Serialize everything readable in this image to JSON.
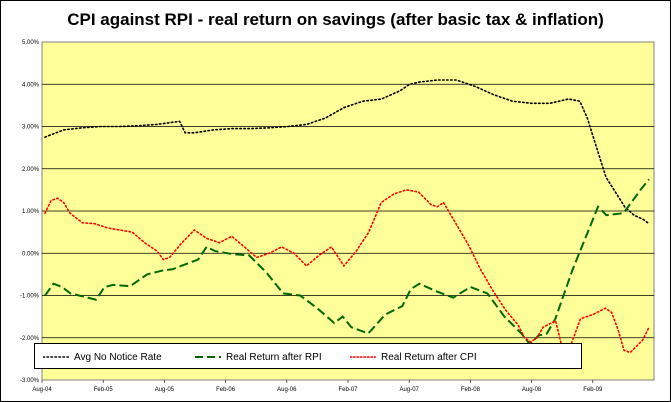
{
  "chart_data": {
    "type": "line",
    "title": "CPI against RPI - real return on savings (after basic tax & inflation)",
    "xlabel": "",
    "ylabel": "",
    "x_ticks": [
      "Aug-04",
      "Feb-05",
      "Aug-05",
      "Feb-06",
      "Aug-06",
      "Feb-07",
      "Aug-07",
      "Feb-08",
      "Aug-08",
      "Feb-09"
    ],
    "y_ticks": [
      "5.00%",
      "4.00%",
      "3.00%",
      "2.00%",
      "1.00%",
      "0.00%",
      "-1.00%",
      "-2.00%",
      "-3.00%"
    ],
    "ylim": [
      -3,
      5
    ],
    "grid": true,
    "legend_position": "bottom",
    "colors": {
      "plot_background": "#FFFF99",
      "gridline": "#000000"
    },
    "series": [
      {
        "name": "Avg No Notice Rate",
        "color": "#000000",
        "style": "dotted",
        "points": [
          [
            0,
            2.75
          ],
          [
            1,
            2.92
          ],
          [
            2,
            2.97
          ],
          [
            3,
            3.0
          ],
          [
            4,
            3.0
          ],
          [
            5,
            3.02
          ],
          [
            6,
            3.05
          ],
          [
            6.8,
            3.1
          ],
          [
            7.2,
            3.12
          ],
          [
            7.5,
            2.85
          ],
          [
            8,
            2.85
          ],
          [
            9,
            2.92
          ],
          [
            10,
            2.95
          ],
          [
            11,
            2.95
          ],
          [
            12,
            2.97
          ],
          [
            13,
            3.0
          ],
          [
            14,
            3.05
          ],
          [
            15,
            3.2
          ],
          [
            16,
            3.45
          ],
          [
            17,
            3.6
          ],
          [
            18,
            3.65
          ],
          [
            19,
            3.85
          ],
          [
            19.5,
            4.0
          ],
          [
            20,
            4.05
          ],
          [
            21,
            4.1
          ],
          [
            22,
            4.1
          ],
          [
            23,
            3.95
          ],
          [
            24,
            3.75
          ],
          [
            25,
            3.6
          ],
          [
            26,
            3.55
          ],
          [
            27,
            3.55
          ],
          [
            27.5,
            3.6
          ],
          [
            28,
            3.65
          ],
          [
            28.6,
            3.6
          ],
          [
            29,
            3.2
          ],
          [
            29.5,
            2.5
          ],
          [
            30,
            1.8
          ],
          [
            31,
            1.1
          ],
          [
            31.5,
            0.9
          ],
          [
            32,
            0.8
          ],
          [
            32.3,
            0.7
          ]
        ]
      },
      {
        "name": "Real Return after RPI",
        "color": "#006600",
        "style": "dashed",
        "points": [
          [
            0,
            -1.0
          ],
          [
            0.5,
            -0.72
          ],
          [
            1,
            -0.8
          ],
          [
            1.5,
            -0.95
          ],
          [
            2,
            -1.0
          ],
          [
            3,
            -1.1
          ],
          [
            3.5,
            -0.8
          ],
          [
            4,
            -0.75
          ],
          [
            5,
            -0.78
          ],
          [
            6,
            -0.5
          ],
          [
            7,
            -0.4
          ],
          [
            7.5,
            -0.38
          ],
          [
            8,
            -0.3
          ],
          [
            9,
            -0.15
          ],
          [
            9.5,
            0.15
          ],
          [
            10,
            0.05
          ],
          [
            11,
            -0.02
          ],
          [
            12,
            -0.05
          ],
          [
            13,
            -0.45
          ],
          [
            14,
            -0.95
          ],
          [
            15,
            -1.0
          ],
          [
            16,
            -1.3
          ],
          [
            17,
            -1.65
          ],
          [
            17.5,
            -1.5
          ],
          [
            18,
            -1.75
          ],
          [
            19,
            -1.9
          ],
          [
            20,
            -1.45
          ],
          [
            21,
            -1.25
          ],
          [
            21.5,
            -0.85
          ],
          [
            22,
            -0.72
          ],
          [
            23,
            -0.9
          ],
          [
            24,
            -1.05
          ],
          [
            25,
            -0.8
          ],
          [
            26,
            -0.95
          ],
          [
            27,
            -1.5
          ],
          [
            28,
            -1.9
          ],
          [
            28.5,
            -2.15
          ],
          [
            29,
            -1.95
          ],
          [
            29.5,
            -1.9
          ],
          [
            30,
            -1.55
          ],
          [
            31,
            -0.4
          ],
          [
            32,
            0.6
          ],
          [
            32.5,
            1.1
          ],
          [
            33,
            0.9
          ],
          [
            34,
            0.95
          ],
          [
            35,
            1.5
          ],
          [
            35.5,
            1.75
          ]
        ]
      },
      {
        "name": "Real Return after CPI",
        "color": "#FF0000",
        "style": "dotted",
        "points": [
          [
            0,
            0.95
          ],
          [
            0.5,
            1.25
          ],
          [
            1,
            1.3
          ],
          [
            1.5,
            1.2
          ],
          [
            2,
            0.95
          ],
          [
            3,
            0.72
          ],
          [
            4,
            0.7
          ],
          [
            5,
            0.6
          ],
          [
            6,
            0.55
          ],
          [
            7,
            0.5
          ],
          [
            8,
            0.25
          ],
          [
            9,
            0.05
          ],
          [
            9.5,
            -0.15
          ],
          [
            10,
            -0.1
          ],
          [
            11,
            0.25
          ],
          [
            12,
            0.55
          ],
          [
            13,
            0.35
          ],
          [
            14,
            0.25
          ],
          [
            15,
            0.4
          ],
          [
            16,
            0.15
          ],
          [
            17,
            -0.1
          ],
          [
            18,
            0.0
          ],
          [
            19,
            0.15
          ],
          [
            20,
            0.0
          ],
          [
            21,
            -0.3
          ],
          [
            22,
            -0.05
          ],
          [
            23,
            0.15
          ],
          [
            24,
            -0.3
          ],
          [
            25,
            0.05
          ],
          [
            26,
            0.5
          ],
          [
            27,
            1.2
          ],
          [
            28,
            1.4
          ],
          [
            29,
            1.5
          ],
          [
            30,
            1.45
          ],
          [
            31,
            1.15
          ],
          [
            31.5,
            1.1
          ],
          [
            32,
            1.2
          ],
          [
            33,
            0.7
          ],
          [
            34,
            0.2
          ],
          [
            35,
            -0.4
          ],
          [
            36,
            -0.9
          ],
          [
            37,
            -1.35
          ],
          [
            38,
            -1.7
          ],
          [
            38.5,
            -2.0
          ],
          [
            39,
            -2.1
          ],
          [
            39.5,
            -2.0
          ],
          [
            40,
            -1.75
          ],
          [
            41,
            -1.6
          ],
          [
            41.5,
            -2.2
          ],
          [
            42,
            -2.35
          ],
          [
            43,
            -1.55
          ],
          [
            44,
            -1.45
          ],
          [
            45,
            -1.3
          ],
          [
            45.5,
            -1.4
          ],
          [
            46,
            -1.8
          ],
          [
            46.5,
            -2.3
          ],
          [
            47,
            -2.35
          ],
          [
            48,
            -2.05
          ],
          [
            48.5,
            -1.75
          ]
        ]
      }
    ]
  }
}
